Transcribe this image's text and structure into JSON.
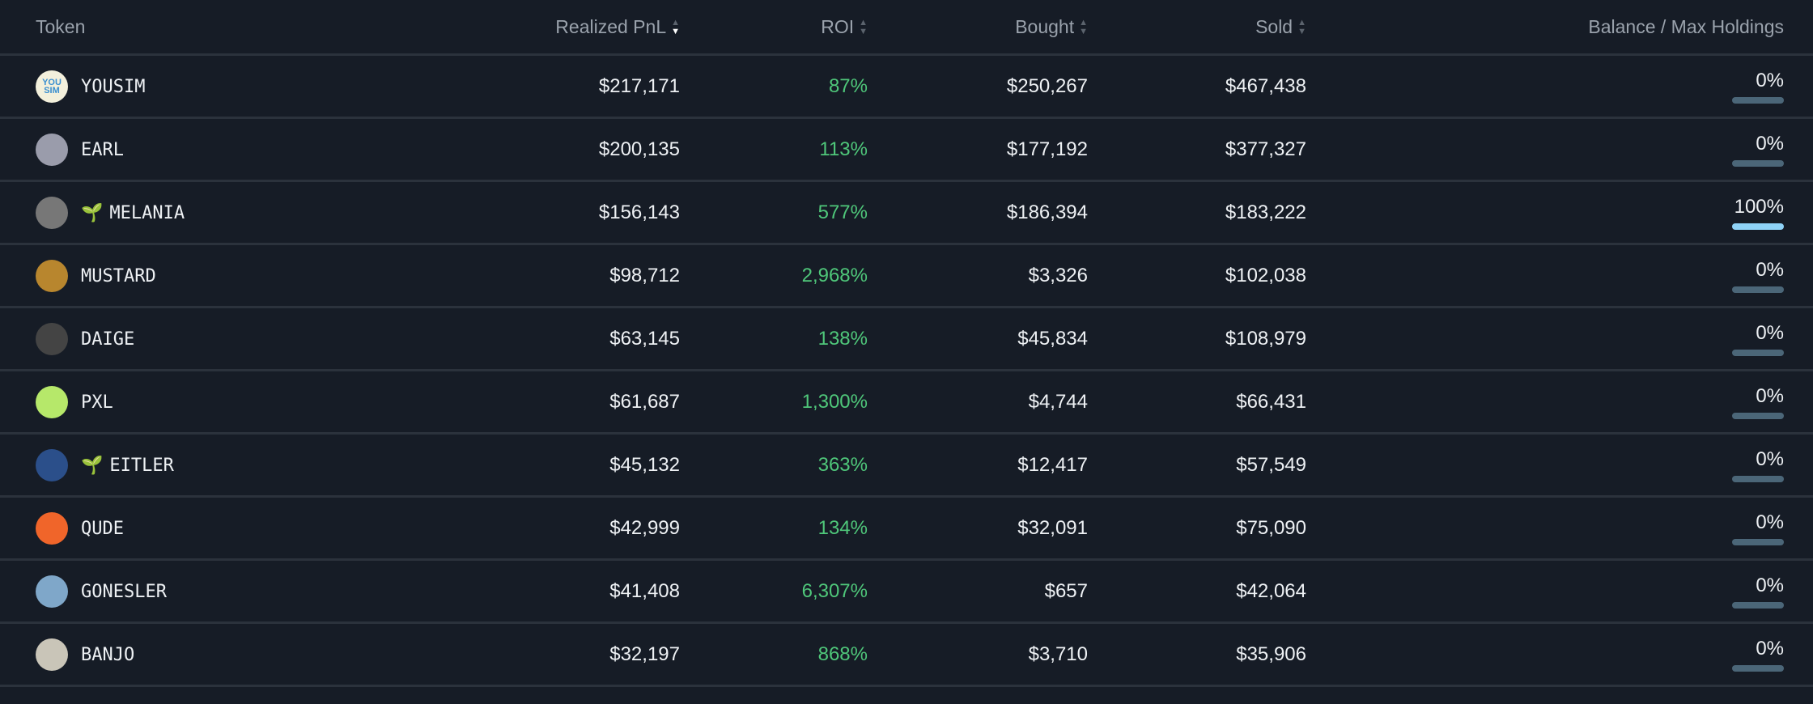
{
  "headers": {
    "token": "Token",
    "pnl": "Realized PnL",
    "roi": "ROI",
    "bought": "Bought",
    "sold": "Sold",
    "balance": "Balance / Max Holdings"
  },
  "sort": {
    "column": "Realized PnL",
    "direction": "desc"
  },
  "colors": {
    "background": "#161c26",
    "roi_positive": "#4fc77a",
    "bar_empty": "#4b6678",
    "bar_full": "#8fd3f7"
  },
  "rows": [
    {
      "token": "YOUSIM",
      "new": false,
      "pnl": "$217,171",
      "roi": "87%",
      "bought": "$250,267",
      "sold": "$467,438",
      "balance": "0%",
      "balance_fraction": 0,
      "avatar_color": "#f3f0dc",
      "avatar_text": "YOU SIM"
    },
    {
      "token": "EARL",
      "new": false,
      "pnl": "$200,135",
      "roi": "113%",
      "bought": "$177,192",
      "sold": "$377,327",
      "balance": "0%",
      "balance_fraction": 0,
      "avatar_color": "#9a9cab"
    },
    {
      "token": "MELANIA",
      "new": true,
      "pnl": "$156,143",
      "roi": "577%",
      "bought": "$186,394",
      "sold": "$183,222",
      "balance": "100%",
      "balance_fraction": 1,
      "avatar_color": "#777777"
    },
    {
      "token": "MUSTARD",
      "new": false,
      "pnl": "$98,712",
      "roi": "2,968%",
      "bought": "$3,326",
      "sold": "$102,038",
      "balance": "0%",
      "balance_fraction": 0,
      "avatar_color": "#b8862e"
    },
    {
      "token": "DAIGE",
      "new": false,
      "pnl": "$63,145",
      "roi": "138%",
      "bought": "$45,834",
      "sold": "$108,979",
      "balance": "0%",
      "balance_fraction": 0,
      "avatar_color": "#444444"
    },
    {
      "token": "PXL",
      "new": false,
      "pnl": "$61,687",
      "roi": "1,300%",
      "bought": "$4,744",
      "sold": "$66,431",
      "balance": "0%",
      "balance_fraction": 0,
      "avatar_color": "#b6e86a"
    },
    {
      "token": "EITLER",
      "new": true,
      "pnl": "$45,132",
      "roi": "363%",
      "bought": "$12,417",
      "sold": "$57,549",
      "balance": "0%",
      "balance_fraction": 0,
      "avatar_color": "#2b4f8a"
    },
    {
      "token": "QUDE",
      "new": false,
      "pnl": "$42,999",
      "roi": "134%",
      "bought": "$32,091",
      "sold": "$75,090",
      "balance": "0%",
      "balance_fraction": 0,
      "avatar_color": "#f0652a"
    },
    {
      "token": "GONESLER",
      "new": false,
      "pnl": "$41,408",
      "roi": "6,307%",
      "bought": "$657",
      "sold": "$42,064",
      "balance": "0%",
      "balance_fraction": 0,
      "avatar_color": "#7fa7c9"
    },
    {
      "token": "BANJO",
      "new": false,
      "pnl": "$32,197",
      "roi": "868%",
      "bought": "$3,710",
      "sold": "$35,906",
      "balance": "0%",
      "balance_fraction": 0,
      "avatar_color": "#c9c5b8"
    }
  ]
}
